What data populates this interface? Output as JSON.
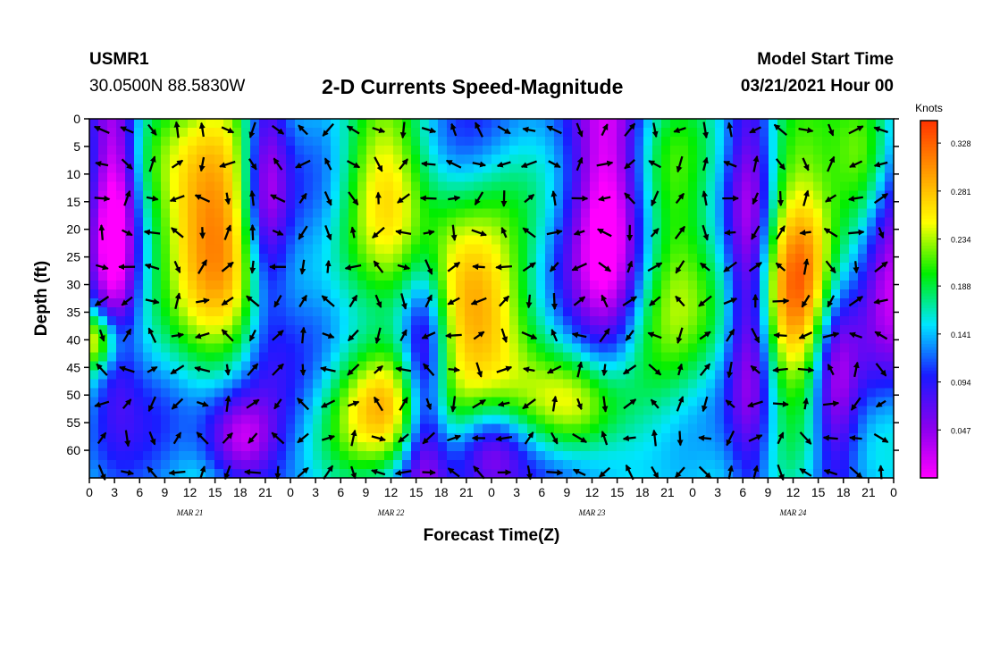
{
  "header": {
    "station": "USMR1",
    "coordinates": "30.0500N 88.5830W",
    "title": "2-D Currents Speed-Magnitude",
    "model_start_label": "Model Start Time",
    "model_start_value": "03/21/2021 Hour 00"
  },
  "chart_data": {
    "type": "heatmap",
    "title": "2-D Currents Speed-Magnitude",
    "xlabel": "Forecast Time(Z)",
    "ylabel": "Depth (ft)",
    "x_tick_labels": [
      "0",
      "3",
      "6",
      "9",
      "12",
      "15",
      "18",
      "21",
      "0",
      "3",
      "6",
      "9",
      "12",
      "15",
      "18",
      "21",
      "0",
      "3",
      "6",
      "9",
      "12",
      "15",
      "18",
      "21",
      "0",
      "3",
      "6",
      "9",
      "12",
      "15",
      "18",
      "21",
      "0"
    ],
    "x_range_hours": [
      0,
      96
    ],
    "date_labels": [
      {
        "label": "MAR 21",
        "hour": 12
      },
      {
        "label": "MAR 22",
        "hour": 36
      },
      {
        "label": "MAR 23",
        "hour": 60
      },
      {
        "label": "MAR 24",
        "hour": 84
      }
    ],
    "y_tick_labels": [
      "0",
      "5",
      "10",
      "15",
      "20",
      "25",
      "30",
      "35",
      "40",
      "45",
      "50",
      "55",
      "60"
    ],
    "y_range_ft": [
      0,
      65
    ],
    "y_inverted": true,
    "colorbar": {
      "unit": "Knots",
      "tick_labels": [
        "0.328",
        "0.281",
        "0.234",
        "0.188",
        "0.141",
        "0.094",
        "0.047"
      ],
      "range": [
        0,
        0.35
      ],
      "colors": [
        "#ff00ff",
        "#8800ee",
        "#1a1aff",
        "#00e5ff",
        "#00ee00",
        "#ffff00",
        "#ff9900",
        "#ff3300"
      ]
    }
  }
}
